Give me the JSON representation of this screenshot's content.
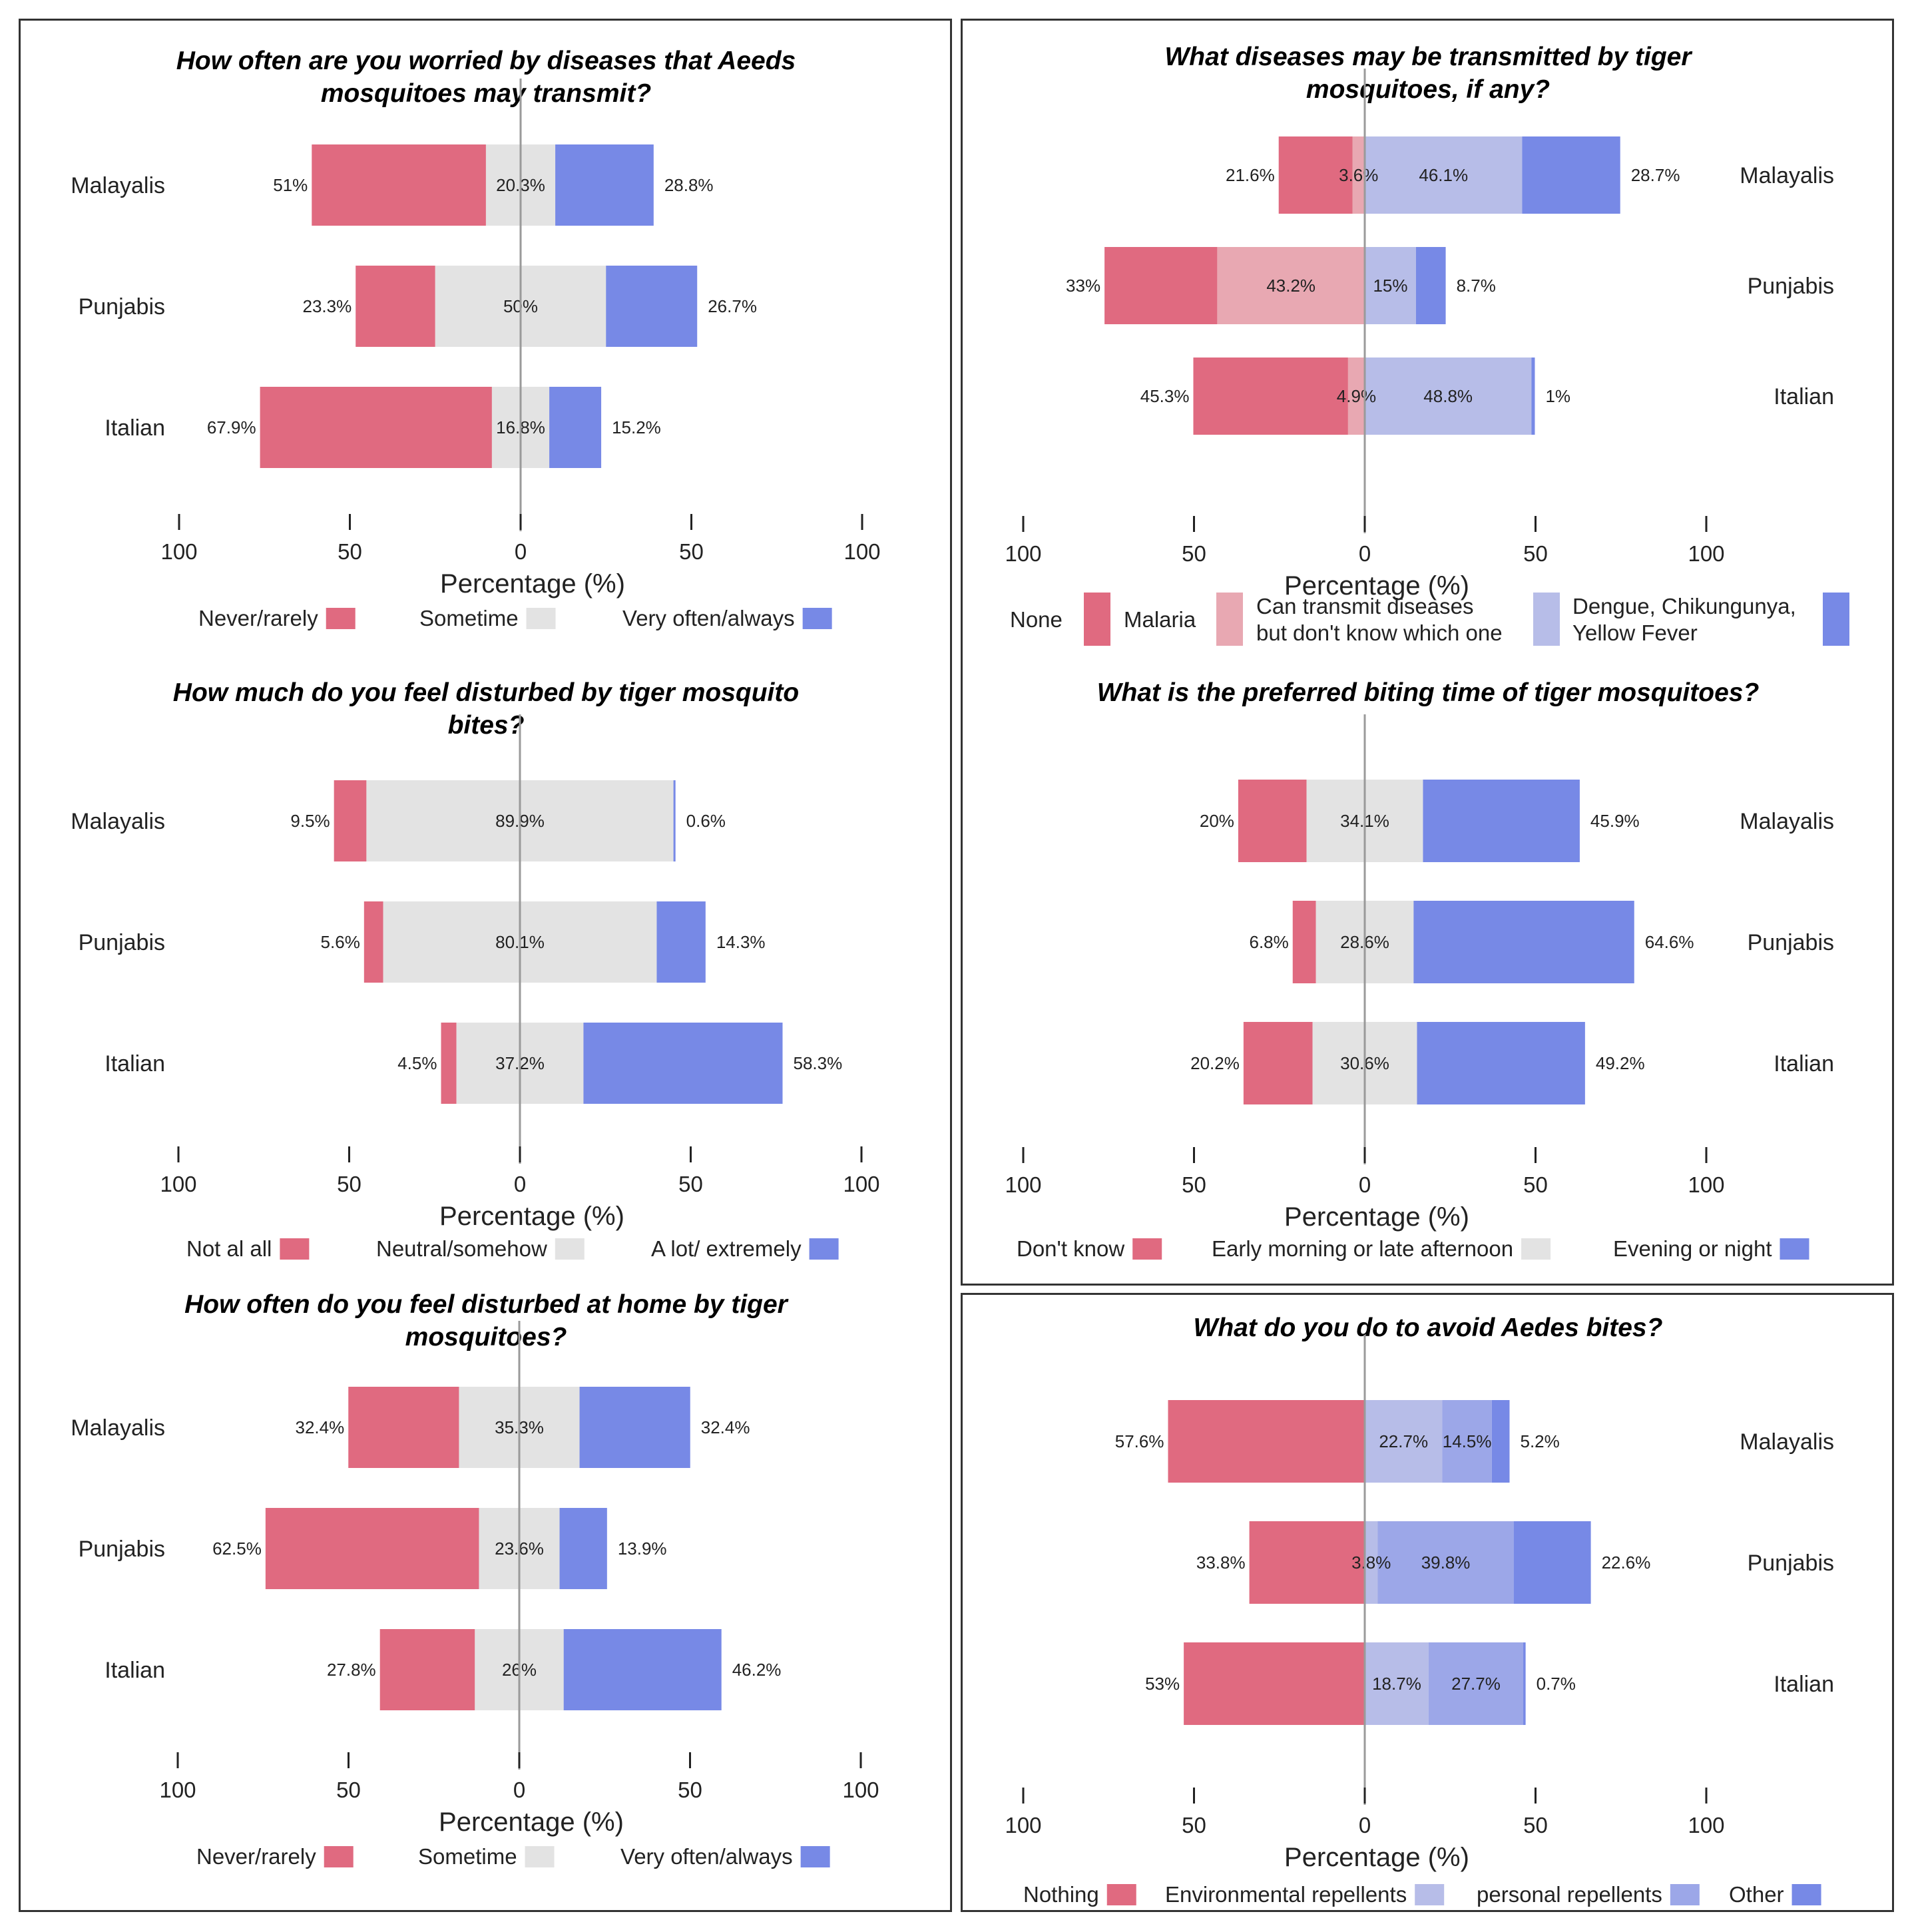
{
  "colors": {
    "neg_strong": "#e06a80",
    "neg_light": "#e8a8b2",
    "neutral": "#e3e3e3",
    "pos_light": "#b7bde8",
    "pos_mid": "#9ca7e8",
    "pos_strong": "#7789e6"
  },
  "chart_data": [
    {
      "id": "worried",
      "type": "bar",
      "subtype": "diverging-stacked-horizontal",
      "title_lines": [
        "How often are you worried by diseases that Aeeds",
        "mosquitoes may transmit?"
      ],
      "categories": [
        "Malayalis",
        "Punjabis",
        "Italian"
      ],
      "labels_side": "left",
      "series": [
        {
          "name": "Never/rarely",
          "values": [
            51,
            23.3,
            67.9
          ],
          "labels": [
            "51%",
            "23.3%",
            "67.9%"
          ],
          "color": "#e06a80",
          "role": "neg"
        },
        {
          "name": "Sometime",
          "values": [
            20.3,
            50,
            16.8
          ],
          "labels": [
            "20.3%",
            "50%",
            "16.8%"
          ],
          "color": "#e3e3e3",
          "role": "neutral"
        },
        {
          "name": "Very often/always",
          "values": [
            28.8,
            26.7,
            15.2
          ],
          "labels": [
            "28.8%",
            "26.7%",
            "15.2%"
          ],
          "color": "#7789e6",
          "role": "pos"
        }
      ],
      "xlim": [
        -100,
        100
      ],
      "xticks": [
        -100,
        -50,
        0,
        50,
        100
      ],
      "xtick_labels": [
        "100",
        "50",
        "0",
        "50",
        "100"
      ],
      "xlabel": "Percentage (%)"
    },
    {
      "id": "disturbed-bites",
      "type": "bar",
      "subtype": "diverging-stacked-horizontal",
      "title_lines": [
        "How much do you feel disturbed by tiger mosquito",
        "bites?"
      ],
      "categories": [
        "Malayalis",
        "Punjabis",
        "Italian"
      ],
      "labels_side": "left",
      "series": [
        {
          "name": "Not al all",
          "values": [
            9.5,
            5.6,
            4.5
          ],
          "labels": [
            "9.5%",
            "5.6%",
            "4.5%"
          ],
          "color": "#e06a80",
          "role": "neg"
        },
        {
          "name": "Neutral/somehow",
          "values": [
            89.9,
            80.1,
            37.2
          ],
          "labels": [
            "89.9%",
            "80.1%",
            "37.2%"
          ],
          "color": "#e3e3e3",
          "role": "neutral"
        },
        {
          "name": "A lot/ extremely",
          "values": [
            0.6,
            14.3,
            58.3
          ],
          "labels": [
            "0.6%",
            "14.3%",
            "58.3%"
          ],
          "color": "#7789e6",
          "role": "pos"
        }
      ],
      "xlim": [
        -100,
        100
      ],
      "xticks": [
        -100,
        -50,
        0,
        50,
        100
      ],
      "xtick_labels": [
        "100",
        "50",
        "0",
        "50",
        "100"
      ],
      "xlabel": "Percentage (%)"
    },
    {
      "id": "disturbed-home",
      "type": "bar",
      "subtype": "diverging-stacked-horizontal",
      "title_lines": [
        "How often do you feel disturbed at home by tiger",
        "mosquitoes?"
      ],
      "categories": [
        "Malayalis",
        "Punjabis",
        "Italian"
      ],
      "labels_side": "left",
      "series": [
        {
          "name": "Never/rarely",
          "values": [
            32.4,
            62.5,
            27.8
          ],
          "labels": [
            "32.4%",
            "62.5%",
            "27.8%"
          ],
          "color": "#e06a80",
          "role": "neg"
        },
        {
          "name": "Sometime",
          "values": [
            35.3,
            23.6,
            26
          ],
          "labels": [
            "35.3%",
            "23.6%",
            "26%"
          ],
          "color": "#e3e3e3",
          "role": "neutral"
        },
        {
          "name": "Very often/always",
          "values": [
            32.4,
            13.9,
            46.2
          ],
          "labels": [
            "32.4%",
            "13.9%",
            "46.2%"
          ],
          "color": "#7789e6",
          "role": "pos"
        }
      ],
      "xlim": [
        -100,
        100
      ],
      "xticks": [
        -100,
        -50,
        0,
        50,
        100
      ],
      "xtick_labels": [
        "100",
        "50",
        "0",
        "50",
        "100"
      ],
      "xlabel": "Percentage (%)"
    },
    {
      "id": "diseases",
      "type": "bar",
      "subtype": "diverging-stacked-horizontal",
      "title_lines": [
        "What diseases may be transmitted by tiger",
        "mosquitoes, if any?"
      ],
      "categories": [
        "Malayalis",
        "Punjabis",
        "Italian"
      ],
      "labels_side": "right",
      "series": [
        {
          "name": "None",
          "values": [
            21.6,
            33,
            45.3
          ],
          "labels": [
            "21.6%",
            "33%",
            "45.3%"
          ],
          "color": "#e06a80",
          "role": "neg"
        },
        {
          "name": "Malaria",
          "values": [
            3.6,
            43.2,
            4.9
          ],
          "labels": [
            "3.6%",
            "43.2%",
            "4.9%"
          ],
          "color": "#e8a8b2",
          "role": "neg"
        },
        {
          "name": "Can transmit diseases but don't know which one",
          "values": [
            46.1,
            15,
            48.8
          ],
          "labels": [
            "46.1%",
            "15%",
            "48.8%"
          ],
          "color": "#b7bde8",
          "role": "pos"
        },
        {
          "name": "Dengue, Chikungunya, Yellow Fever",
          "values": [
            28.7,
            8.7,
            1
          ],
          "labels": [
            "28.7%",
            "8.7%",
            "1%"
          ],
          "color": "#7789e6",
          "role": "pos"
        }
      ],
      "legend_items": [
        "None",
        "Malaria",
        "Can transmit diseases",
        "but don't know which one",
        "Dengue, Chikungunya,",
        "Yellow Fever"
      ],
      "xlim": [
        -100,
        100
      ],
      "xticks": [
        -100,
        -50,
        0,
        50,
        100
      ],
      "xtick_labels": [
        "100",
        "50",
        "0",
        "50",
        "100"
      ],
      "xlabel": "Percentage (%)"
    },
    {
      "id": "biting-time",
      "type": "bar",
      "subtype": "diverging-stacked-horizontal",
      "title_lines": [
        "What is the preferred biting time of tiger mosquitoes?"
      ],
      "categories": [
        "Malayalis",
        "Punjabis",
        "Italian"
      ],
      "labels_side": "right",
      "series": [
        {
          "name": "Don't know",
          "values": [
            20,
            6.8,
            20.2
          ],
          "labels": [
            "20%",
            "6.8%",
            "20.2%"
          ],
          "color": "#e06a80",
          "role": "neg"
        },
        {
          "name": "Early morning or late afternoon",
          "values": [
            34.1,
            28.6,
            30.6
          ],
          "labels": [
            "34.1%",
            "28.6%",
            "30.6%"
          ],
          "color": "#e3e3e3",
          "role": "neutral"
        },
        {
          "name": "Evening or night",
          "values": [
            45.9,
            64.6,
            49.2
          ],
          "labels": [
            "45.9%",
            "64.6%",
            "49.2%"
          ],
          "color": "#7789e6",
          "role": "pos"
        }
      ],
      "xlim": [
        -100,
        100
      ],
      "xticks": [
        -100,
        -50,
        0,
        50,
        100
      ],
      "xtick_labels": [
        "100",
        "50",
        "0",
        "50",
        "100"
      ],
      "xlabel": "Percentage (%)"
    },
    {
      "id": "avoid-bites",
      "type": "bar",
      "subtype": "diverging-stacked-horizontal",
      "title_lines": [
        "What do you do to avoid Aedes bites?"
      ],
      "categories": [
        "Malayalis",
        "Punjabis",
        "Italian"
      ],
      "labels_side": "right",
      "series": [
        {
          "name": "Nothing",
          "values": [
            57.6,
            33.8,
            53
          ],
          "labels": [
            "57.6%",
            "33.8%",
            "53%"
          ],
          "color": "#e06a80",
          "role": "neg"
        },
        {
          "name": "Environmental repellents",
          "values": [
            22.7,
            3.8,
            18.7
          ],
          "labels": [
            "22.7%",
            "3.8%",
            "18.7%"
          ],
          "color": "#b7bde8",
          "role": "pos"
        },
        {
          "name": "personal repellents",
          "values": [
            14.5,
            39.8,
            27.7
          ],
          "labels": [
            "14.5%",
            "39.8%",
            "27.7%"
          ],
          "color": "#9ca7e8",
          "role": "pos"
        },
        {
          "name": "Other",
          "values": [
            5.2,
            22.6,
            0.7
          ],
          "labels": [
            "5.2%",
            "22.6%",
            "0.7%"
          ],
          "color": "#7789e6",
          "role": "pos"
        }
      ],
      "xlim": [
        -100,
        100
      ],
      "xticks": [
        -100,
        -50,
        0,
        50,
        100
      ],
      "xtick_labels": [
        "100",
        "50",
        "0",
        "50",
        "100"
      ],
      "xlabel": "Percentage (%)"
    }
  ]
}
